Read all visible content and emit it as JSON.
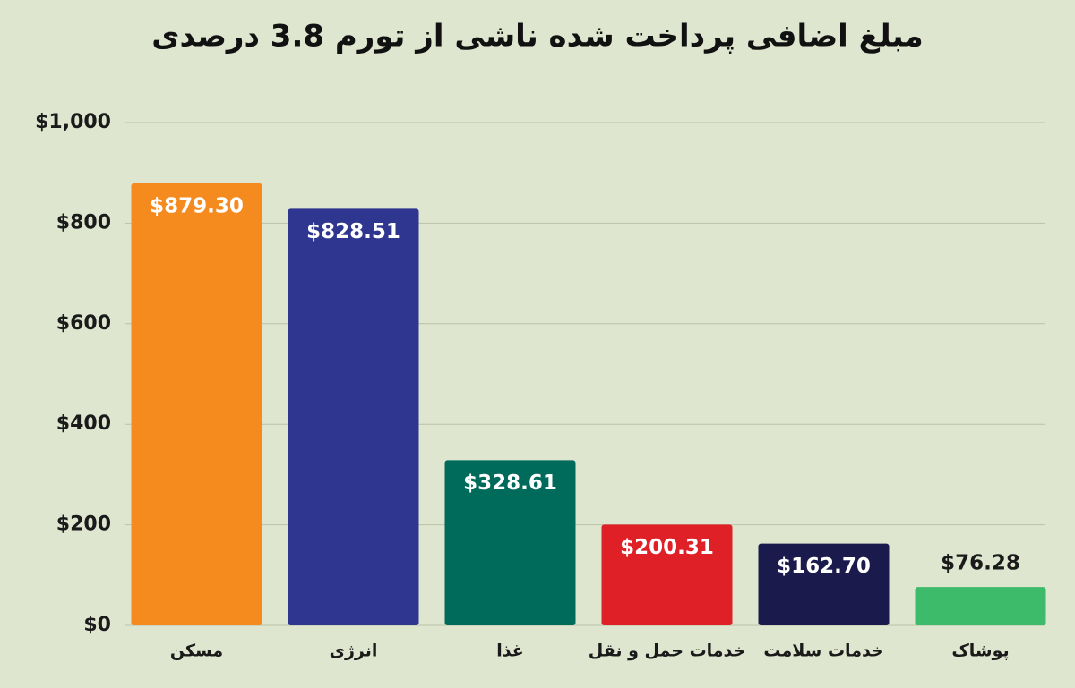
{
  "chart_data": {
    "type": "bar",
    "title": "مبلغ اضافی پرداخت شده ناشی از تورم 3.8 درصدی",
    "categories": [
      "مسکن",
      "انرژی",
      "غذا",
      "خدمات حمل و نقل",
      "خدمات سلامت",
      "پوشاک"
    ],
    "values": [
      879.3,
      828.51,
      328.61,
      200.31,
      162.7,
      76.28
    ],
    "value_labels": [
      "$879.30",
      "$828.51",
      "$328.61",
      "$200.31",
      "$162.70",
      "$76.28"
    ],
    "colors": [
      "#f58a1f",
      "#2e3690",
      "#006b5a",
      "#e02027",
      "#1b1a4d",
      "#3dba6a"
    ],
    "ylim": [
      0,
      1000
    ],
    "yticks": [
      {
        "value": 0,
        "label": "$0"
      },
      {
        "value": 200,
        "label": "$200"
      },
      {
        "value": 400,
        "label": "$400"
      },
      {
        "value": 600,
        "label": "$600"
      },
      {
        "value": 800,
        "label": "$800"
      },
      {
        "value": 1000,
        "label": "$1,000"
      }
    ],
    "grid": true
  }
}
